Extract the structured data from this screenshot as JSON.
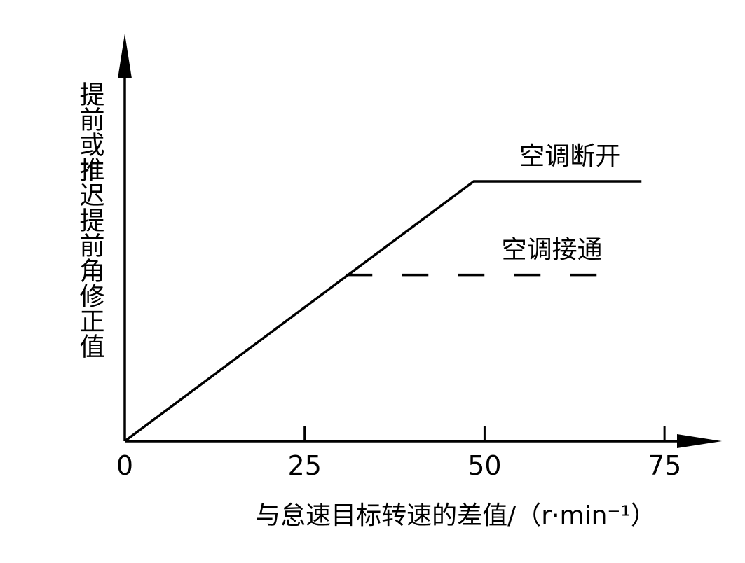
{
  "chart_data": {
    "type": "line",
    "x_label": "与怠速目标转速的差值/（r·min⁻¹）",
    "y_label": "提前或推迟提前角修正值",
    "xlim": [
      0,
      82
    ],
    "xticks": [
      0,
      25,
      50,
      75
    ],
    "ylim": [
      0,
      15.5
    ],
    "series": [
      {
        "name": "空调断开",
        "color": "#000000",
        "style": "solid",
        "x": [
          0,
          48.5,
          71.8
        ],
        "values": [
          0,
          10,
          10
        ]
      },
      {
        "name": "空调接通",
        "color": "#000000",
        "style": "dashed",
        "x": [
          30.7,
          69.3
        ],
        "values": [
          6.4,
          6.4
        ]
      }
    ]
  }
}
